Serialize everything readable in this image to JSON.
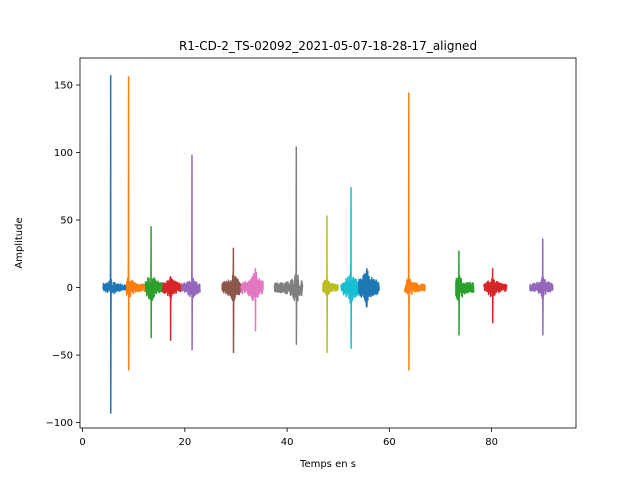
{
  "chart_data": {
    "type": "line",
    "title": "R1-CD-2_TS-02092_2021-05-07-18-28-17_aligned",
    "xlabel": "Temps en s",
    "ylabel": "Amplitude",
    "xlim": [
      -0.5,
      96.5
    ],
    "ylim": [
      -104,
      170
    ],
    "xticks": [
      0,
      20,
      40,
      60,
      80
    ],
    "yticks": [
      -100,
      -50,
      0,
      50,
      100,
      150
    ],
    "grid": false,
    "legend": "none",
    "series": [
      {
        "color": "#1f77b4",
        "x_range": [
          4.0,
          8.6
        ],
        "spike_x": 5.5,
        "max": 157,
        "min": -93,
        "baseline": [
          -5,
          6
        ]
      },
      {
        "color": "#ff7f0e",
        "x_range": [
          8.6,
          12.3
        ],
        "spike_x": 9.0,
        "max": 156,
        "min": -61,
        "baseline": [
          -8,
          6
        ]
      },
      {
        "color": "#2ca02c",
        "x_range": [
          12.3,
          15.7
        ],
        "spike_x": 13.4,
        "max": 45,
        "min": -37,
        "baseline": [
          -10,
          8
        ]
      },
      {
        "color": "#d62728",
        "x_range": [
          15.7,
          19.4
        ],
        "spike_x": 17.2,
        "max": 8,
        "min": -39,
        "baseline": [
          -8,
          6
        ]
      },
      {
        "color": "#9467bd",
        "x_range": [
          19.4,
          23.0
        ],
        "spike_x": 21.4,
        "max": 98,
        "min": -46,
        "baseline": [
          -8,
          6
        ]
      },
      {
        "color": "#8c564b",
        "x_range": [
          27.3,
          31.0
        ],
        "spike_x": 29.5,
        "max": 29,
        "min": -48,
        "baseline": [
          -10,
          8
        ]
      },
      {
        "color": "#e377c2",
        "x_range": [
          31.0,
          35.3
        ],
        "spike_x": 33.8,
        "max": 14,
        "min": -32,
        "baseline": [
          -12,
          10
        ]
      },
      {
        "color": "#7f7f7f",
        "x_range": [
          37.5,
          43.0
        ],
        "spike_x": 41.8,
        "max": 104,
        "min": -42,
        "baseline": [
          -12,
          8
        ]
      },
      {
        "color": "#bcbd22",
        "x_range": [
          47.0,
          50.0
        ],
        "spike_x": 47.8,
        "max": 53,
        "min": -48,
        "baseline": [
          -6,
          5
        ]
      },
      {
        "color": "#17becf",
        "x_range": [
          50.5,
          54.5
        ],
        "spike_x": 52.5,
        "max": 74,
        "min": -45,
        "baseline": [
          -10,
          10
        ]
      },
      {
        "color": "#1f77b4",
        "x_range": [
          54.0,
          58.0
        ],
        "spike_x": 55.6,
        "max": 14,
        "min": -14,
        "baseline": [
          -12,
          12
        ]
      },
      {
        "color": "#ff7f0e",
        "x_range": [
          63.0,
          67.0
        ],
        "spike_x": 63.8,
        "max": 144,
        "min": -61,
        "baseline": [
          -8,
          5
        ]
      },
      {
        "color": "#2ca02c",
        "x_range": [
          73.0,
          76.5
        ],
        "spike_x": 73.6,
        "max": 27,
        "min": -35,
        "baseline": [
          -10,
          8
        ]
      },
      {
        "color": "#d62728",
        "x_range": [
          78.5,
          83.0
        ],
        "spike_x": 80.2,
        "max": 14,
        "min": -26,
        "baseline": [
          -8,
          6
        ]
      },
      {
        "color": "#9467bd",
        "x_range": [
          87.5,
          92.0
        ],
        "spike_x": 90.0,
        "max": 36,
        "min": -35,
        "baseline": [
          -8,
          5
        ]
      }
    ]
  }
}
